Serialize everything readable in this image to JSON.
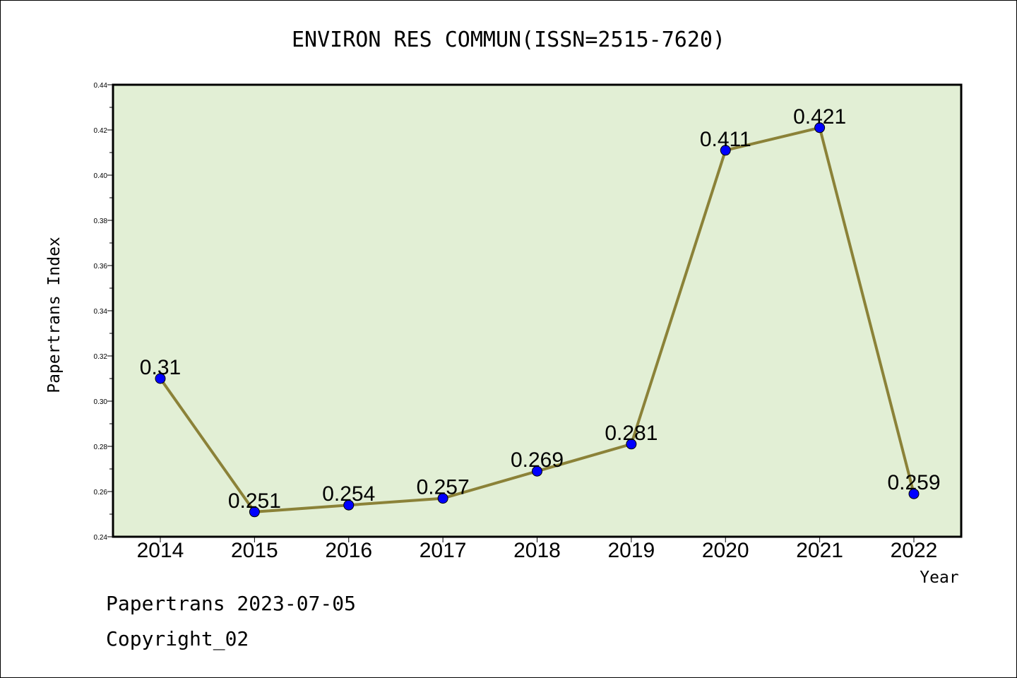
{
  "chart_data": {
    "type": "line",
    "title": "ENVIRON RES COMMUN(ISSN=2515-7620)",
    "xlabel": "Year",
    "ylabel": "Papertrans Index",
    "x": [
      "2014",
      "2015",
      "2016",
      "2017",
      "2018",
      "2019",
      "2020",
      "2021",
      "2022"
    ],
    "values": [
      0.31,
      0.251,
      0.254,
      0.257,
      0.269,
      0.281,
      0.411,
      0.421,
      0.259
    ],
    "data_labels": [
      "0.31",
      "0.251",
      "0.254",
      "0.257",
      "0.269",
      "0.281",
      "0.411",
      "0.421",
      "0.259"
    ],
    "ylim": [
      0.24,
      0.44
    ],
    "yticks": [
      "0.24",
      "0.26",
      "0.28",
      "0.30",
      "0.32",
      "0.34",
      "0.36",
      "0.38",
      "0.40",
      "0.42",
      "0.44"
    ],
    "grid": false,
    "colors": {
      "plot_background": "#e2efd5",
      "line": "#8b8238",
      "marker": "#0000ff"
    }
  },
  "footer": {
    "date_line": "Papertrans 2023-07-05",
    "copyright_line": "Copyright_02"
  }
}
